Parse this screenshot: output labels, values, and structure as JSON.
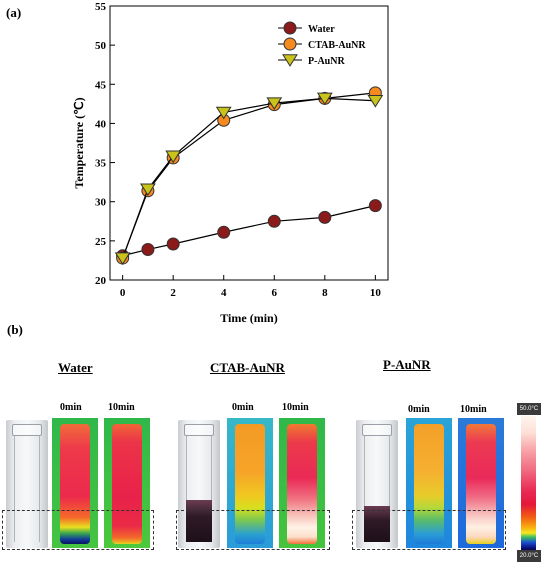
{
  "chart_data": {
    "type": "line",
    "panel_label": "(a)",
    "xlabel": "Time (min)",
    "ylabel": "Temperature (℃)",
    "xlim": [
      -0.5,
      10.5
    ],
    "ylim": [
      20,
      55
    ],
    "x_ticks": [
      0,
      2,
      4,
      6,
      8,
      10
    ],
    "y_ticks": [
      20,
      25,
      30,
      35,
      40,
      45,
      50,
      55
    ],
    "legend_position": "top-right",
    "series": [
      {
        "name": "Water",
        "color": "#8b1a1a",
        "marker": "circle",
        "x": [
          0,
          1,
          2,
          4,
          6,
          8,
          10
        ],
        "y": [
          23.1,
          23.9,
          24.6,
          26.1,
          27.5,
          28.0,
          29.5
        ]
      },
      {
        "name": "CTAB-AuNR",
        "color": "#f58a1f",
        "marker": "circle",
        "x": [
          0,
          1,
          2,
          4,
          6,
          8,
          10
        ],
        "y": [
          22.8,
          31.4,
          35.6,
          40.4,
          42.4,
          43.2,
          43.9
        ]
      },
      {
        "name": "P-AuNR",
        "color": "#c9c31a",
        "marker": "triangle-down",
        "x": [
          0,
          1,
          2,
          4,
          6,
          8,
          10
        ],
        "y": [
          22.8,
          31.6,
          35.8,
          41.4,
          42.6,
          43.2,
          42.9
        ]
      }
    ]
  },
  "panel_b": {
    "label": "(b)",
    "groups": [
      {
        "title": "Water",
        "t0": "0min",
        "t1": "10min"
      },
      {
        "title": "CTAB-AuNR",
        "t0": "0min",
        "t1": "10min"
      },
      {
        "title": "P-AuNR",
        "t0": "0min",
        "t1": "10min"
      }
    ],
    "scale_max": "50.0°C",
    "scale_min": "20.0°C"
  }
}
